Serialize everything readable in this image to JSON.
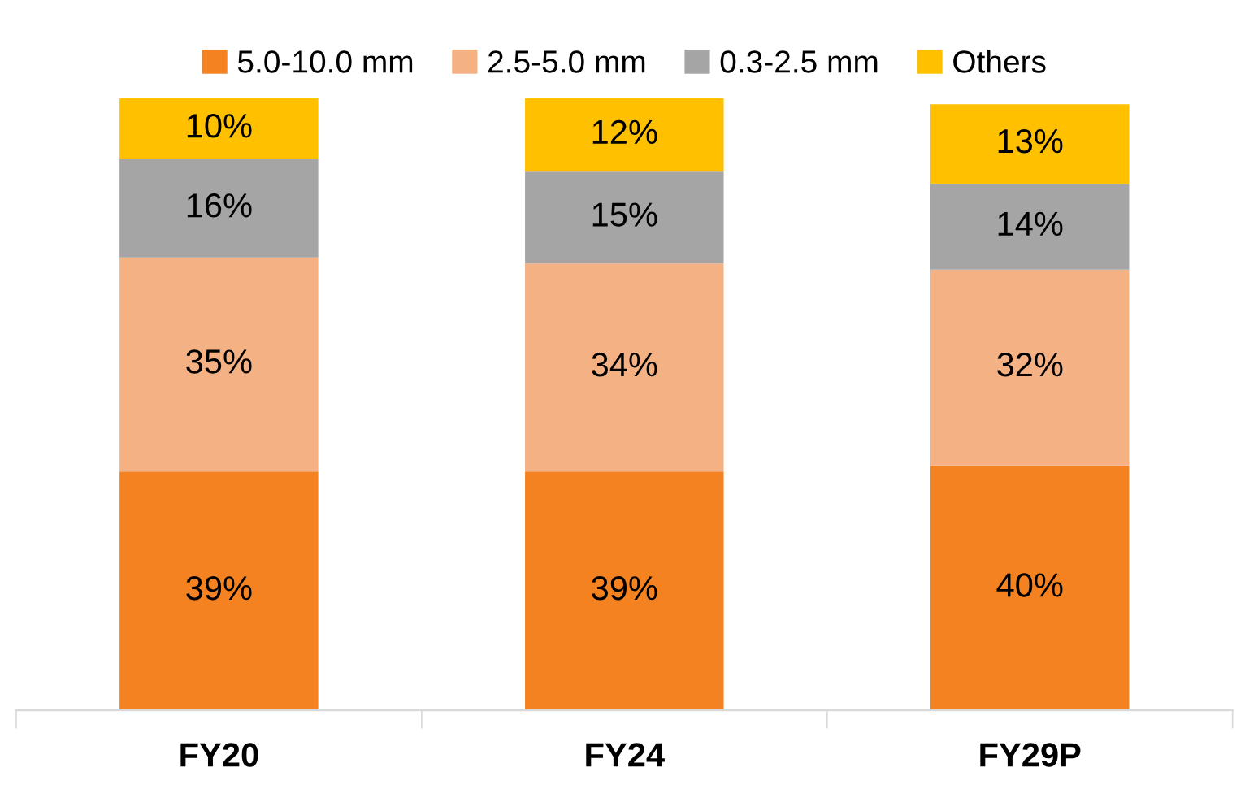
{
  "chart_data": {
    "type": "bar",
    "stacked": true,
    "legend": "top",
    "categories": [
      "FY20",
      "FY24",
      "FY29P"
    ],
    "series": [
      {
        "name": "5.0-10.0 mm",
        "color": "#f58220",
        "values": [
          39,
          39,
          40
        ],
        "value_labels": [
          "39%",
          "39%",
          "40%"
        ]
      },
      {
        "name": "2.5-5.0 mm",
        "color": "#f4b183",
        "values": [
          35,
          34,
          32
        ],
        "value_labels": [
          "35%",
          "34%",
          "32%"
        ]
      },
      {
        "name": "0.3-2.5 mm",
        "color": "#a5a5a5",
        "values": [
          16,
          15,
          14
        ],
        "value_labels": [
          "16%",
          "15%",
          "14%"
        ]
      },
      {
        "name": "Others",
        "color": "#ffc000",
        "values": [
          10,
          12,
          13
        ],
        "value_labels": [
          "10%",
          "12%",
          "13%"
        ]
      }
    ]
  }
}
